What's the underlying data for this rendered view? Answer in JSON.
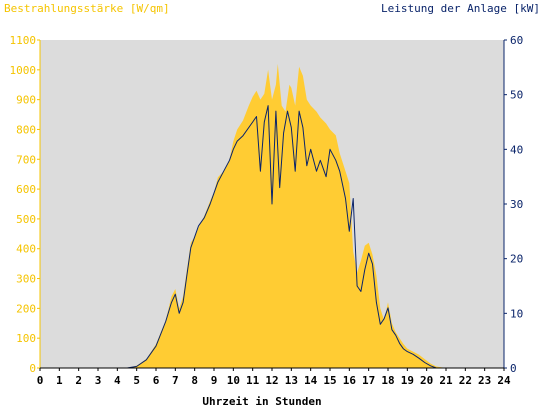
{
  "colors": {
    "irradiance_fill": "#ffcc33",
    "power_line": "#0a246a",
    "plot_bg": "#dcdcdc",
    "left_axis_text": "#f5c400",
    "right_axis_text": "#0a246a",
    "axis_line": "#000000"
  },
  "chart_data": {
    "type": "area",
    "title_left": "Bestrahlungsstärke [W/qm]",
    "title_right": "Leistung der Anlage [kW]",
    "xlabel": "Uhrzeit in Stunden",
    "xlim": [
      0,
      24
    ],
    "x_ticks": [
      "0",
      "1",
      "2",
      "3",
      "4",
      "5",
      "6",
      "7",
      "8",
      "9",
      "10",
      "11",
      "12",
      "13",
      "14",
      "15",
      "16",
      "17",
      "18",
      "19",
      "20",
      "21",
      "22",
      "23",
      "24"
    ],
    "y_left": {
      "lim": [
        0,
        1100
      ],
      "ticks": [
        "0",
        "100",
        "200",
        "300",
        "400",
        "500",
        "600",
        "700",
        "800",
        "900",
        "1000",
        "1100"
      ]
    },
    "y_right": {
      "lim": [
        0,
        60
      ],
      "ticks": [
        "0",
        "10",
        "20",
        "30",
        "40",
        "50",
        "60"
      ]
    },
    "grid": false,
    "series": [
      {
        "axis": "left",
        "style": "area",
        "points": [
          [
            0,
            0
          ],
          [
            4.5,
            0
          ],
          [
            5.0,
            8
          ],
          [
            5.5,
            30
          ],
          [
            6.0,
            80
          ],
          [
            6.5,
            160
          ],
          [
            6.8,
            240
          ],
          [
            7.0,
            265
          ],
          [
            7.2,
            200
          ],
          [
            7.4,
            240
          ],
          [
            7.6,
            330
          ],
          [
            7.8,
            420
          ],
          [
            8.0,
            440
          ],
          [
            8.2,
            470
          ],
          [
            8.5,
            510
          ],
          [
            8.8,
            560
          ],
          [
            9.0,
            590
          ],
          [
            9.2,
            640
          ],
          [
            9.5,
            660
          ],
          [
            9.8,
            700
          ],
          [
            10.0,
            760
          ],
          [
            10.2,
            800
          ],
          [
            10.5,
            830
          ],
          [
            10.8,
            880
          ],
          [
            11.0,
            910
          ],
          [
            11.2,
            930
          ],
          [
            11.4,
            900
          ],
          [
            11.6,
            920
          ],
          [
            11.8,
            1000
          ],
          [
            12.0,
            900
          ],
          [
            12.2,
            950
          ],
          [
            12.3,
            1020
          ],
          [
            12.5,
            880
          ],
          [
            12.7,
            860
          ],
          [
            12.9,
            950
          ],
          [
            13.0,
            940
          ],
          [
            13.2,
            880
          ],
          [
            13.4,
            1010
          ],
          [
            13.6,
            980
          ],
          [
            13.8,
            900
          ],
          [
            14.0,
            880
          ],
          [
            14.3,
            860
          ],
          [
            14.5,
            840
          ],
          [
            14.8,
            820
          ],
          [
            15.0,
            800
          ],
          [
            15.3,
            780
          ],
          [
            15.5,
            720
          ],
          [
            15.8,
            660
          ],
          [
            16.0,
            620
          ],
          [
            16.2,
            390
          ],
          [
            16.4,
            320
          ],
          [
            16.6,
            360
          ],
          [
            16.8,
            410
          ],
          [
            17.0,
            420
          ],
          [
            17.2,
            380
          ],
          [
            17.4,
            310
          ],
          [
            17.6,
            200
          ],
          [
            17.8,
            160
          ],
          [
            18.0,
            220
          ],
          [
            18.2,
            150
          ],
          [
            18.4,
            120
          ],
          [
            18.6,
            100
          ],
          [
            18.8,
            80
          ],
          [
            19.0,
            65
          ],
          [
            19.3,
            55
          ],
          [
            19.6,
            45
          ],
          [
            19.9,
            30
          ],
          [
            20.2,
            15
          ],
          [
            20.5,
            5
          ],
          [
            21.0,
            0
          ],
          [
            24,
            0
          ]
        ]
      },
      {
        "axis": "right",
        "style": "line",
        "points": [
          [
            0,
            0
          ],
          [
            4.5,
            0
          ],
          [
            5.0,
            0.3
          ],
          [
            5.5,
            1.5
          ],
          [
            6.0,
            4
          ],
          [
            6.5,
            8.5
          ],
          [
            6.8,
            12
          ],
          [
            7.0,
            13.5
          ],
          [
            7.2,
            10
          ],
          [
            7.4,
            12
          ],
          [
            7.6,
            17
          ],
          [
            7.8,
            22
          ],
          [
            8.0,
            24
          ],
          [
            8.2,
            26
          ],
          [
            8.5,
            27.5
          ],
          [
            8.8,
            30
          ],
          [
            9.0,
            32
          ],
          [
            9.2,
            34
          ],
          [
            9.5,
            36
          ],
          [
            9.8,
            38
          ],
          [
            10.0,
            40
          ],
          [
            10.2,
            41.5
          ],
          [
            10.5,
            42.5
          ],
          [
            10.8,
            44
          ],
          [
            11.0,
            45
          ],
          [
            11.2,
            46
          ],
          [
            11.4,
            36
          ],
          [
            11.6,
            45
          ],
          [
            11.8,
            48
          ],
          [
            12.0,
            30
          ],
          [
            12.2,
            47
          ],
          [
            12.4,
            33
          ],
          [
            12.6,
            43
          ],
          [
            12.8,
            47
          ],
          [
            13.0,
            44
          ],
          [
            13.2,
            36
          ],
          [
            13.4,
            47
          ],
          [
            13.6,
            44
          ],
          [
            13.8,
            37
          ],
          [
            14.0,
            40
          ],
          [
            14.3,
            36
          ],
          [
            14.5,
            38
          ],
          [
            14.8,
            35
          ],
          [
            15.0,
            40
          ],
          [
            15.3,
            38
          ],
          [
            15.5,
            36
          ],
          [
            15.8,
            31
          ],
          [
            16.0,
            25
          ],
          [
            16.2,
            31
          ],
          [
            16.4,
            15
          ],
          [
            16.6,
            14
          ],
          [
            16.8,
            18
          ],
          [
            17.0,
            21
          ],
          [
            17.2,
            19
          ],
          [
            17.4,
            12
          ],
          [
            17.6,
            8
          ],
          [
            17.8,
            9
          ],
          [
            18.0,
            11
          ],
          [
            18.2,
            7
          ],
          [
            18.4,
            6
          ],
          [
            18.6,
            4.5
          ],
          [
            18.8,
            3.5
          ],
          [
            19.0,
            3
          ],
          [
            19.3,
            2.5
          ],
          [
            19.6,
            1.8
          ],
          [
            19.9,
            1
          ],
          [
            20.2,
            0.4
          ],
          [
            20.5,
            0
          ],
          [
            24,
            0
          ]
        ]
      }
    ]
  }
}
